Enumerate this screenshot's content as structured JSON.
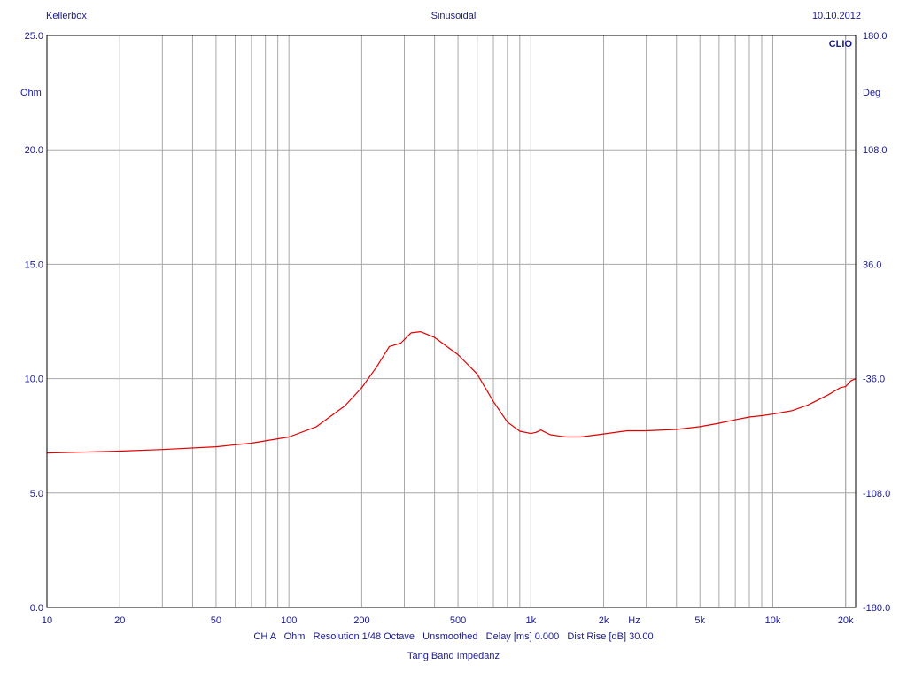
{
  "header": {
    "left": "Kellerbox",
    "center": "Sinusoidal",
    "right": "10.10.2012"
  },
  "footer": {
    "info": "CH A   Ohm   Resolution 1/48 Octave   Unsmoothed   Delay [ms] 0.000   Dist Rise [dB] 30.00",
    "title": "Tang Band Impedanz"
  },
  "chart_data": {
    "type": "line",
    "title": "",
    "brand_label": "CLIO",
    "x_scale": "log",
    "xlim": [
      10,
      22000
    ],
    "x_unit_label": "Hz",
    "x_ticks": [
      {
        "value": 10,
        "label": "10"
      },
      {
        "value": 20,
        "label": "20"
      },
      {
        "value": 50,
        "label": "50"
      },
      {
        "value": 100,
        "label": "100"
      },
      {
        "value": 200,
        "label": "200"
      },
      {
        "value": 500,
        "label": "500"
      },
      {
        "value": 1000,
        "label": "1k"
      },
      {
        "value": 2000,
        "label": "2k"
      },
      {
        "value": 5000,
        "label": "5k"
      },
      {
        "value": 10000,
        "label": "10k"
      },
      {
        "value": 20000,
        "label": "20k"
      }
    ],
    "y_left": {
      "label": "Ohm",
      "ylim": [
        0,
        25
      ],
      "ticks": [
        {
          "value": 0,
          "label": "0.0"
        },
        {
          "value": 5,
          "label": "5.0"
        },
        {
          "value": 10,
          "label": "10.0"
        },
        {
          "value": 15,
          "label": "15.0"
        },
        {
          "value": 20,
          "label": "20.0"
        },
        {
          "value": 25,
          "label": "25.0"
        }
      ]
    },
    "y_right": {
      "label": "Deg",
      "ylim": [
        -180,
        180
      ],
      "ticks": [
        {
          "value": -180,
          "label": "-180.0"
        },
        {
          "value": -108,
          "label": "-108.0"
        },
        {
          "value": -36,
          "label": "-36.0"
        },
        {
          "value": 36,
          "label": "36.0"
        },
        {
          "value": 108,
          "label": "108.0"
        },
        {
          "value": 180,
          "label": "180.0"
        }
      ]
    },
    "grid": true,
    "colors": {
      "frame": "#000000",
      "grid": "#a8a8a8",
      "text": "#1a1a8c",
      "curve": "#e00000"
    },
    "series": [
      {
        "color": "#e00000",
        "axis": "left",
        "x": [
          10,
          20,
          30,
          50,
          70,
          100,
          130,
          170,
          200,
          230,
          260,
          270,
          290,
          320,
          350,
          400,
          450,
          500,
          600,
          700,
          800,
          900,
          1000,
          1050,
          1100,
          1200,
          1400,
          1600,
          2000,
          2500,
          3000,
          4000,
          5000,
          6000,
          7000,
          8000,
          9000,
          10000,
          12000,
          14000,
          17000,
          19000,
          20000,
          21000,
          22000
        ],
        "y": [
          6.75,
          6.83,
          6.9,
          7.02,
          7.18,
          7.45,
          7.9,
          8.8,
          9.6,
          10.5,
          11.4,
          11.45,
          11.55,
          12.0,
          12.05,
          11.8,
          11.4,
          11.05,
          10.2,
          9.0,
          8.1,
          7.7,
          7.6,
          7.65,
          7.75,
          7.55,
          7.45,
          7.45,
          7.58,
          7.72,
          7.72,
          7.78,
          7.9,
          8.05,
          8.2,
          8.32,
          8.38,
          8.45,
          8.6,
          8.85,
          9.3,
          9.6,
          9.65,
          9.9,
          10.0
        ]
      }
    ]
  }
}
